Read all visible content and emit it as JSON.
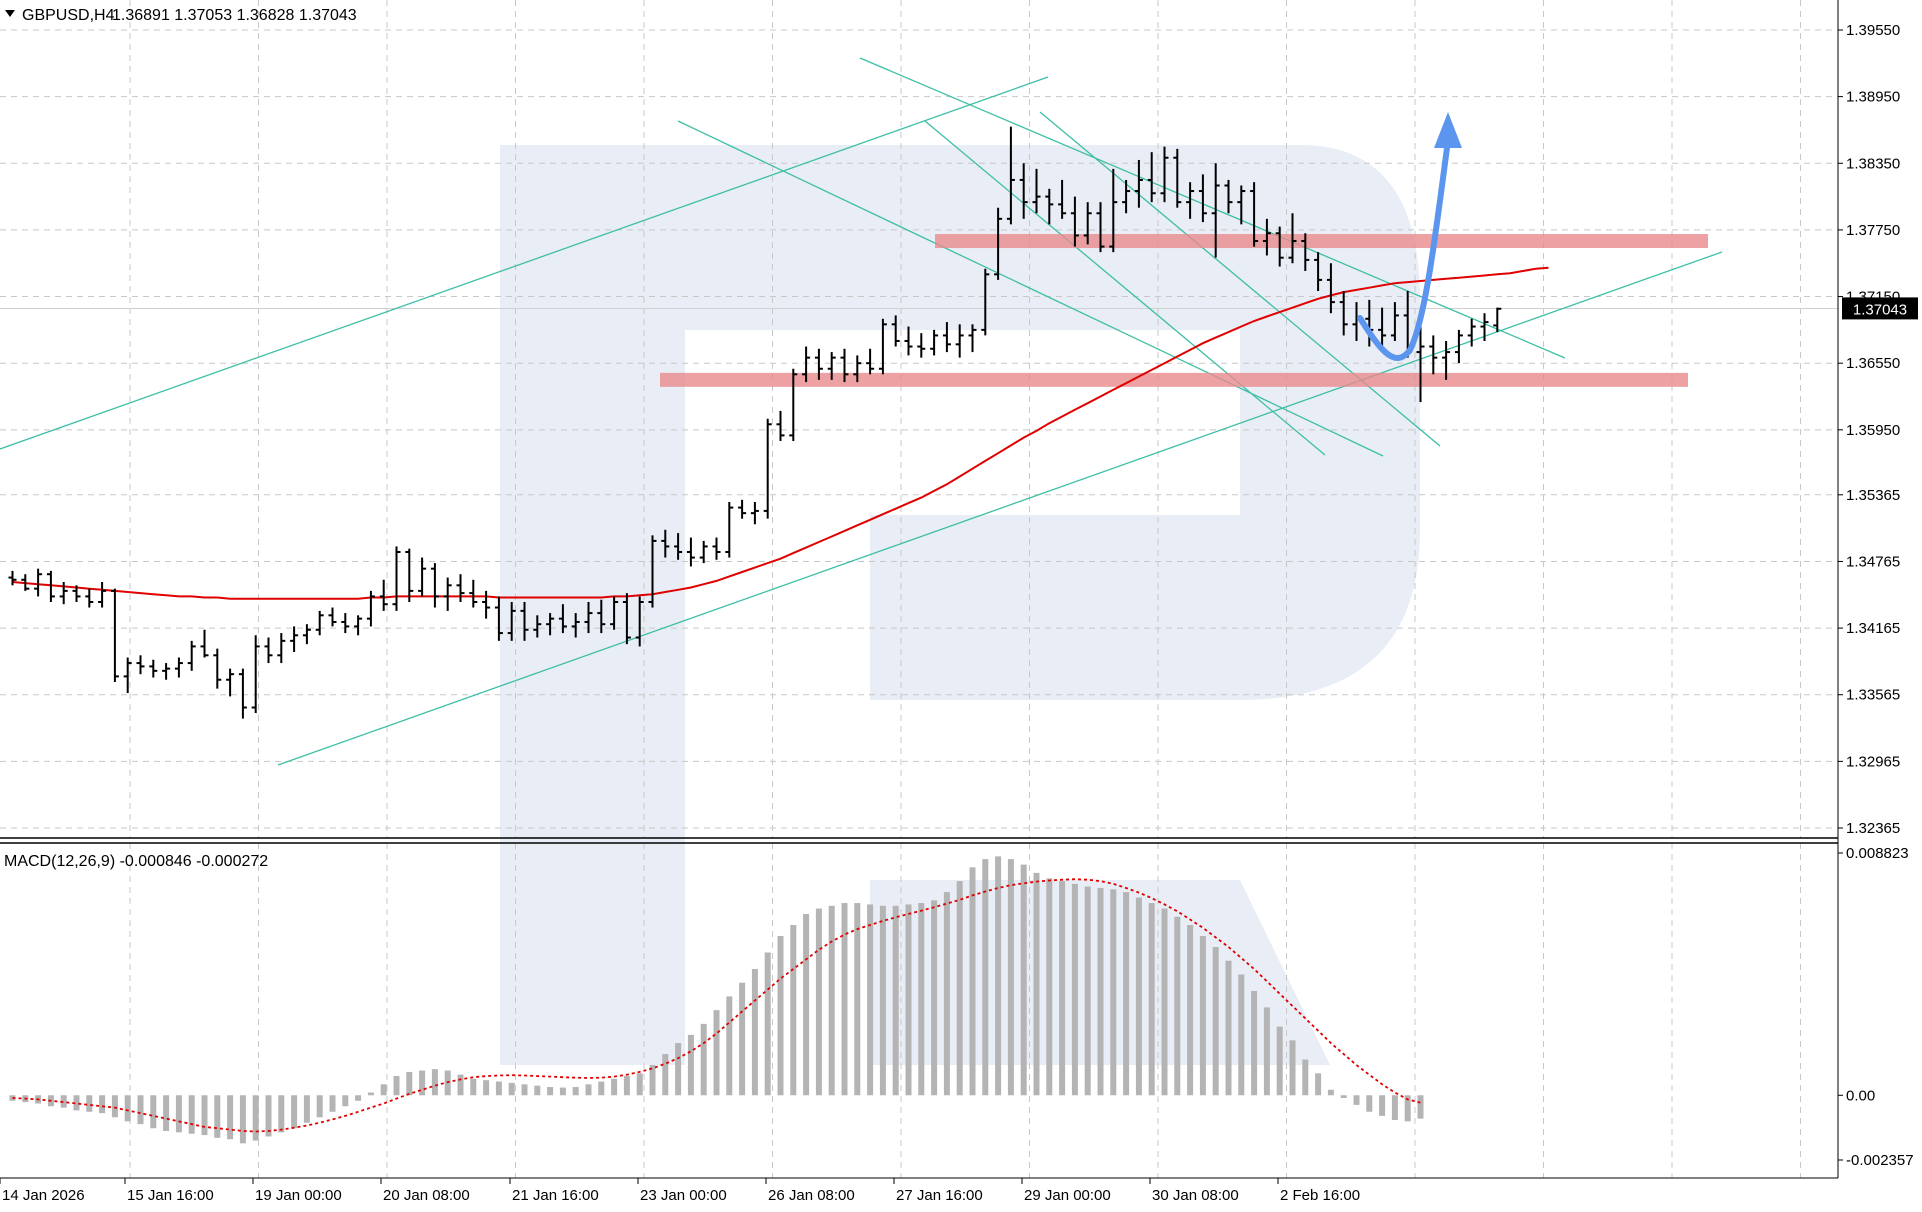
{
  "header": {
    "symbol": "GBPUSD,H4",
    "ohlc": "1.36891 1.37053 1.36828 1.37043"
  },
  "macd_header": {
    "label": "MACD(12,26,9) -0.000846 -0.000272"
  },
  "colors": {
    "background": "#ffffff",
    "grid": "#c8c8c8",
    "bars": "#000000",
    "moving_average": "#e00000",
    "trendlines": "#3dbfa5",
    "support_resistance": "#e88a8c",
    "forecast_arrow": "#5b95ee",
    "macd_histogram": "#b4b4b4",
    "macd_signal": "#e00000",
    "price_badge_bg": "#000000",
    "price_badge_fg": "#ffffff",
    "watermark": "#e9edf5"
  },
  "chart_data": [
    {
      "type": "ohlc",
      "symbol": "GBPUSD",
      "timeframe": "H4",
      "current_price": "1.37043",
      "price_axis_labels": [
        "1.39550",
        "1.38950",
        "1.38350",
        "1.37750",
        "1.37150",
        "1.36550",
        "1.35950",
        "1.35365",
        "1.34765",
        "1.34165",
        "1.33565",
        "1.32965",
        "1.32365"
      ],
      "ylim": [
        1.32365,
        1.3955
      ],
      "time_axis_labels": [
        "14 Jan 2026",
        "15 Jan 16:00",
        "19 Jan 00:00",
        "20 Jan 08:00",
        "21 Jan 16:00",
        "23 Jan 00:00",
        "26 Jan 08:00",
        "27 Jan 16:00",
        "29 Jan 00:00",
        "30 Jan 08:00",
        "2 Feb 16:00"
      ],
      "bars": [
        [
          1.3462,
          1.3468,
          1.3455,
          1.346
        ],
        [
          1.346,
          1.3465,
          1.345,
          1.3452
        ],
        [
          1.3452,
          1.347,
          1.3445,
          1.3465
        ],
        [
          1.3465,
          1.3468,
          1.344,
          1.3445
        ],
        [
          1.3445,
          1.3458,
          1.3438,
          1.345
        ],
        [
          1.345,
          1.3455,
          1.344,
          1.3445
        ],
        [
          1.3445,
          1.3452,
          1.3435,
          1.344
        ],
        [
          1.344,
          1.3458,
          1.3435,
          1.345
        ],
        [
          1.345,
          1.3452,
          1.3368,
          1.3373
        ],
        [
          1.3373,
          1.339,
          1.3358,
          1.3385
        ],
        [
          1.3385,
          1.3392,
          1.3375,
          1.3382
        ],
        [
          1.3382,
          1.3388,
          1.3372,
          1.3378
        ],
        [
          1.3378,
          1.3385,
          1.337,
          1.338
        ],
        [
          1.338,
          1.339,
          1.3372,
          1.3385
        ],
        [
          1.3385,
          1.3405,
          1.3378,
          1.34
        ],
        [
          1.34,
          1.3415,
          1.339,
          1.3392
        ],
        [
          1.3392,
          1.3398,
          1.3362,
          1.337
        ],
        [
          1.337,
          1.338,
          1.3355,
          1.3375
        ],
        [
          1.3375,
          1.338,
          1.3335,
          1.3345
        ],
        [
          1.3345,
          1.341,
          1.334,
          1.34
        ],
        [
          1.34,
          1.3408,
          1.3385,
          1.3392
        ],
        [
          1.3392,
          1.3412,
          1.3385,
          1.3405
        ],
        [
          1.3405,
          1.3418,
          1.3395,
          1.341
        ],
        [
          1.341,
          1.342,
          1.3402,
          1.3415
        ],
        [
          1.3415,
          1.3432,
          1.341,
          1.3428
        ],
        [
          1.3428,
          1.3435,
          1.3418,
          1.3422
        ],
        [
          1.3422,
          1.343,
          1.3412,
          1.3418
        ],
        [
          1.3418,
          1.3428,
          1.341,
          1.3425
        ],
        [
          1.3425,
          1.345,
          1.3418,
          1.3445
        ],
        [
          1.3445,
          1.346,
          1.3432,
          1.3438
        ],
        [
          1.3438,
          1.349,
          1.3432,
          1.3485
        ],
        [
          1.3485,
          1.3488,
          1.344,
          1.345
        ],
        [
          1.345,
          1.348,
          1.3445,
          1.347
        ],
        [
          1.347,
          1.3475,
          1.3435,
          1.3445
        ],
        [
          1.3445,
          1.3462,
          1.3432,
          1.3455
        ],
        [
          1.3455,
          1.3465,
          1.344,
          1.3448
        ],
        [
          1.3448,
          1.346,
          1.3435,
          1.344
        ],
        [
          1.344,
          1.345,
          1.3425,
          1.3435
        ],
        [
          1.3435,
          1.3445,
          1.3405,
          1.3412
        ],
        [
          1.3412,
          1.344,
          1.3405,
          1.3432
        ],
        [
          1.3432,
          1.344,
          1.3405,
          1.3415
        ],
        [
          1.3415,
          1.3428,
          1.3408,
          1.342
        ],
        [
          1.342,
          1.343,
          1.341,
          1.3425
        ],
        [
          1.3425,
          1.3438,
          1.3412,
          1.3418
        ],
        [
          1.3418,
          1.343,
          1.3408,
          1.3422
        ],
        [
          1.3422,
          1.344,
          1.3412,
          1.343
        ],
        [
          1.343,
          1.3442,
          1.3412,
          1.342
        ],
        [
          1.342,
          1.3445,
          1.3415,
          1.344
        ],
        [
          1.344,
          1.3448,
          1.3402,
          1.3408
        ],
        [
          1.3408,
          1.3445,
          1.34,
          1.344
        ],
        [
          1.344,
          1.35,
          1.3435,
          1.3495
        ],
        [
          1.3495,
          1.3505,
          1.348,
          1.349
        ],
        [
          1.349,
          1.3502,
          1.3478,
          1.3485
        ],
        [
          1.3485,
          1.3498,
          1.3472,
          1.348
        ],
        [
          1.348,
          1.3495,
          1.3475,
          1.349
        ],
        [
          1.349,
          1.3498,
          1.3478,
          1.3485
        ],
        [
          1.3485,
          1.353,
          1.348,
          1.3525
        ],
        [
          1.3525,
          1.3532,
          1.3515,
          1.352
        ],
        [
          1.352,
          1.353,
          1.351,
          1.3522
        ],
        [
          1.3522,
          1.3605,
          1.3515,
          1.36
        ],
        [
          1.36,
          1.3612,
          1.3585,
          1.359
        ],
        [
          1.359,
          1.365,
          1.3585,
          1.3645
        ],
        [
          1.3645,
          1.367,
          1.3638,
          1.366
        ],
        [
          1.366,
          1.3668,
          1.364,
          1.365
        ],
        [
          1.365,
          1.3665,
          1.364,
          1.366
        ],
        [
          1.366,
          1.3668,
          1.3638,
          1.3645
        ],
        [
          1.3645,
          1.3662,
          1.3638,
          1.3655
        ],
        [
          1.3655,
          1.3668,
          1.3645,
          1.365
        ],
        [
          1.365,
          1.3695,
          1.3645,
          1.369
        ],
        [
          1.369,
          1.3698,
          1.367,
          1.3675
        ],
        [
          1.3675,
          1.3688,
          1.3662,
          1.367
        ],
        [
          1.367,
          1.3682,
          1.366,
          1.3668
        ],
        [
          1.3668,
          1.3685,
          1.3662,
          1.368
        ],
        [
          1.368,
          1.3692,
          1.3665,
          1.3672
        ],
        [
          1.3672,
          1.369,
          1.366,
          1.368
        ],
        [
          1.368,
          1.369,
          1.3665,
          1.3685
        ],
        [
          1.3685,
          1.374,
          1.368,
          1.3735
        ],
        [
          1.3735,
          1.3795,
          1.373,
          1.3785
        ],
        [
          1.3785,
          1.3868,
          1.378,
          1.382
        ],
        [
          1.382,
          1.3835,
          1.3785,
          1.38
        ],
        [
          1.38,
          1.383,
          1.379,
          1.3805
        ],
        [
          1.3805,
          1.3812,
          1.378,
          1.3798
        ],
        [
          1.3798,
          1.382,
          1.3785,
          1.379
        ],
        [
          1.379,
          1.3805,
          1.376,
          1.377
        ],
        [
          1.377,
          1.38,
          1.3762,
          1.379
        ],
        [
          1.379,
          1.38,
          1.3755,
          1.376
        ],
        [
          1.376,
          1.383,
          1.3755,
          1.38
        ],
        [
          1.38,
          1.382,
          1.379,
          1.381
        ],
        [
          1.381,
          1.3838,
          1.3795,
          1.382
        ],
        [
          1.382,
          1.3845,
          1.38,
          1.3808
        ],
        [
          1.3808,
          1.385,
          1.38,
          1.384
        ],
        [
          1.384,
          1.3848,
          1.3795,
          1.38
        ],
        [
          1.38,
          1.3818,
          1.3785,
          1.381
        ],
        [
          1.381,
          1.3825,
          1.3782,
          1.379
        ],
        [
          1.379,
          1.3835,
          1.375,
          1.3815
        ],
        [
          1.3815,
          1.382,
          1.379,
          1.38
        ],
        [
          1.38,
          1.3815,
          1.378,
          1.381
        ],
        [
          1.381,
          1.3818,
          1.376,
          1.3765
        ],
        [
          1.3765,
          1.3785,
          1.3752,
          1.3772
        ],
        [
          1.3772,
          1.3778,
          1.3742,
          1.375
        ],
        [
          1.375,
          1.379,
          1.3745,
          1.3765
        ],
        [
          1.3765,
          1.3772,
          1.3738,
          1.3748
        ],
        [
          1.3748,
          1.3755,
          1.372,
          1.373
        ],
        [
          1.373,
          1.3745,
          1.37,
          1.371
        ],
        [
          1.371,
          1.372,
          1.368,
          1.369
        ],
        [
          1.369,
          1.371,
          1.3675,
          1.3695
        ],
        [
          1.3695,
          1.3712,
          1.367,
          1.3685
        ],
        [
          1.3685,
          1.3705,
          1.3668,
          1.368
        ],
        [
          1.368,
          1.371,
          1.3675,
          1.3698
        ],
        [
          1.3698,
          1.372,
          1.366,
          1.3665
        ],
        [
          1.3665,
          1.369,
          1.362,
          1.367
        ],
        [
          1.367,
          1.368,
          1.3645,
          1.366
        ],
        [
          1.366,
          1.3675,
          1.364,
          1.3665
        ],
        [
          1.3665,
          1.3685,
          1.3655,
          1.368
        ],
        [
          1.368,
          1.3695,
          1.367,
          1.3688
        ],
        [
          1.3688,
          1.37,
          1.3675,
          1.3692
        ],
        [
          1.3689,
          1.3705,
          1.3683,
          1.3704
        ]
      ],
      "moving_average": [
        1.3458,
        1.3457,
        1.3456,
        1.3455,
        1.3454,
        1.3453,
        1.3452,
        1.3451,
        1.345,
        1.3449,
        1.3448,
        1.3447,
        1.3446,
        1.3445,
        1.3445,
        1.3444,
        1.3444,
        1.3443,
        1.3443,
        1.3443,
        1.3443,
        1.3443,
        1.3443,
        1.3443,
        1.3443,
        1.3443,
        1.3443,
        1.3443,
        1.3444,
        1.3444,
        1.3445,
        1.3445,
        1.3445,
        1.3445,
        1.3445,
        1.3445,
        1.3445,
        1.3445,
        1.3444,
        1.3444,
        1.3444,
        1.3444,
        1.3444,
        1.3444,
        1.3444,
        1.3444,
        1.3444,
        1.3445,
        1.3445,
        1.3446,
        1.3447,
        1.3449,
        1.3451,
        1.3453,
        1.3456,
        1.3459,
        1.3463,
        1.3467,
        1.3471,
        1.3475,
        1.3479,
        1.3484,
        1.3489,
        1.3494,
        1.3499,
        1.3504,
        1.3509,
        1.3514,
        1.3519,
        1.3524,
        1.3529,
        1.3534,
        1.354,
        1.3546,
        1.3553,
        1.356,
        1.3567,
        1.3574,
        1.3581,
        1.3588,
        1.3594,
        1.3601,
        1.3607,
        1.3613,
        1.3619,
        1.3625,
        1.3631,
        1.3637,
        1.3643,
        1.3649,
        1.3655,
        1.3661,
        1.3667,
        1.3673,
        1.3678,
        1.3683,
        1.3688,
        1.3693,
        1.3697,
        1.3701,
        1.3705,
        1.3709,
        1.3713,
        1.3716,
        1.3719,
        1.3721,
        1.3723,
        1.3725,
        1.3727,
        1.3728,
        1.3729,
        1.373,
        1.3731,
        1.3732,
        1.3733,
        1.3734,
        1.3735,
        1.3736,
        1.3738,
        1.374,
        1.3741
      ],
      "support_resistance_zones": [
        1.3765,
        1.364
      ],
      "forecast": "price dips toward 1.3665 then rises above 1.3890"
    },
    {
      "type": "histogram",
      "name": "MACD(12,26,9)",
      "values_text": "-0.000846 -0.000272",
      "axis_labels": [
        "0.008823",
        "0.00",
        "-0.002357"
      ],
      "ylim": [
        -0.002357,
        0.008823
      ],
      "histogram": [
        -0.0002,
        -0.00025,
        -0.0003,
        -0.0004,
        -0.00045,
        -0.00055,
        -0.0006,
        -0.00065,
        -0.0008,
        -0.00095,
        -0.00105,
        -0.0012,
        -0.0013,
        -0.00135,
        -0.0014,
        -0.00145,
        -0.00155,
        -0.0016,
        -0.00175,
        -0.00165,
        -0.0015,
        -0.00135,
        -0.0012,
        -0.001,
        -0.0008,
        -0.0006,
        -0.0004,
        -0.0002,
        0.0001,
        0.0004,
        0.0007,
        0.00085,
        0.0009,
        0.00095,
        0.0009,
        0.00075,
        0.0006,
        0.00055,
        0.0005,
        0.00045,
        0.0004,
        0.00035,
        0.0003,
        0.00028,
        0.0003,
        0.0004,
        0.0005,
        0.0006,
        0.0007,
        0.0008,
        0.0011,
        0.0015,
        0.0019,
        0.0022,
        0.0026,
        0.0031,
        0.0036,
        0.0041,
        0.0046,
        0.0052,
        0.0058,
        0.0062,
        0.0066,
        0.0068,
        0.0069,
        0.007,
        0.007,
        0.00695,
        0.0069,
        0.0069,
        0.00695,
        0.007,
        0.0071,
        0.0074,
        0.0078,
        0.0083,
        0.0086,
        0.0087,
        0.0086,
        0.0084,
        0.0081,
        0.0079,
        0.0078,
        0.0077,
        0.0076,
        0.00755,
        0.0075,
        0.0074,
        0.0072,
        0.007,
        0.0068,
        0.0065,
        0.0062,
        0.0058,
        0.0054,
        0.0049,
        0.0044,
        0.0038,
        0.0032,
        0.0025,
        0.002,
        0.0013,
        0.0008,
        0.0002,
        -0.0001,
        -0.00035,
        -0.0006,
        -0.00075,
        -0.0009,
        -0.00095,
        -0.00085
      ],
      "signal": [
        -0.0001,
        -0.00012,
        -0.00015,
        -0.0002,
        -0.00025,
        -0.0003,
        -0.00035,
        -0.0004,
        -0.00045,
        -0.00055,
        -0.00065,
        -0.00075,
        -0.00085,
        -0.00095,
        -0.00105,
        -0.00115,
        -0.0012,
        -0.00125,
        -0.0013,
        -0.00132,
        -0.0013,
        -0.00125,
        -0.00118,
        -0.0011,
        -0.001,
        -0.00088,
        -0.00075,
        -0.0006,
        -0.00045,
        -0.0003,
        -0.00012,
        5e-05,
        0.0002,
        0.00035,
        0.00048,
        0.00058,
        0.00066,
        0.0007,
        0.00072,
        0.00073,
        0.00072,
        0.0007,
        0.00068,
        0.00066,
        0.00064,
        0.00063,
        0.00064,
        0.00068,
        0.00075,
        0.00085,
        0.00098,
        0.00115,
        0.00135,
        0.0016,
        0.0019,
        0.00225,
        0.00265,
        0.00305,
        0.00345,
        0.00385,
        0.00425,
        0.0046,
        0.00495,
        0.0053,
        0.0056,
        0.00585,
        0.00605,
        0.0062,
        0.00635,
        0.00648,
        0.0066,
        0.00672,
        0.00685,
        0.00698,
        0.00712,
        0.00728,
        0.00742,
        0.00755,
        0.00765,
        0.00772,
        0.00778,
        0.00782,
        0.00785,
        0.00787,
        0.00785,
        0.0078,
        0.0077,
        0.00755,
        0.00738,
        0.00718,
        0.00695,
        0.0067,
        0.0064,
        0.0061,
        0.00575,
        0.0054,
        0.005,
        0.0046,
        0.00415,
        0.0037,
        0.00325,
        0.0028,
        0.00235,
        0.0019,
        0.0015,
        0.0011,
        0.00075,
        0.0004,
        0.0001,
        -0.00015,
        -0.00027
      ]
    }
  ]
}
